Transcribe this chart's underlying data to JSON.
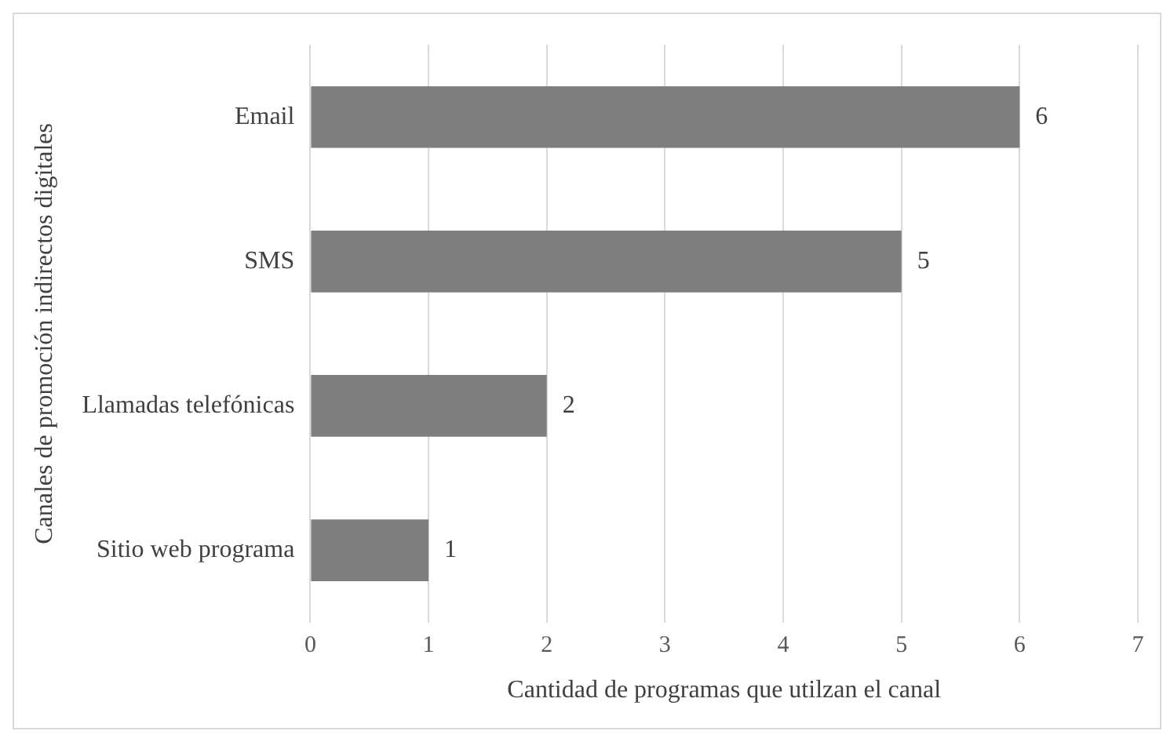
{
  "chart_data": {
    "type": "bar",
    "orientation": "horizontal",
    "xlabel": "Cantidad de programas que utilzan el canal",
    "ylabel": "Canales de promoción indirectos digitales",
    "categories": [
      "Email",
      "SMS",
      "Llamadas telefónicas",
      "Sitio web programa"
    ],
    "values": [
      6,
      5,
      2,
      1
    ],
    "color": "#7f7f7f",
    "xlim": [
      0,
      7
    ],
    "xticks": [
      0,
      1,
      2,
      3,
      4,
      5,
      6,
      7
    ],
    "grid": "x",
    "data_labels": true
  }
}
